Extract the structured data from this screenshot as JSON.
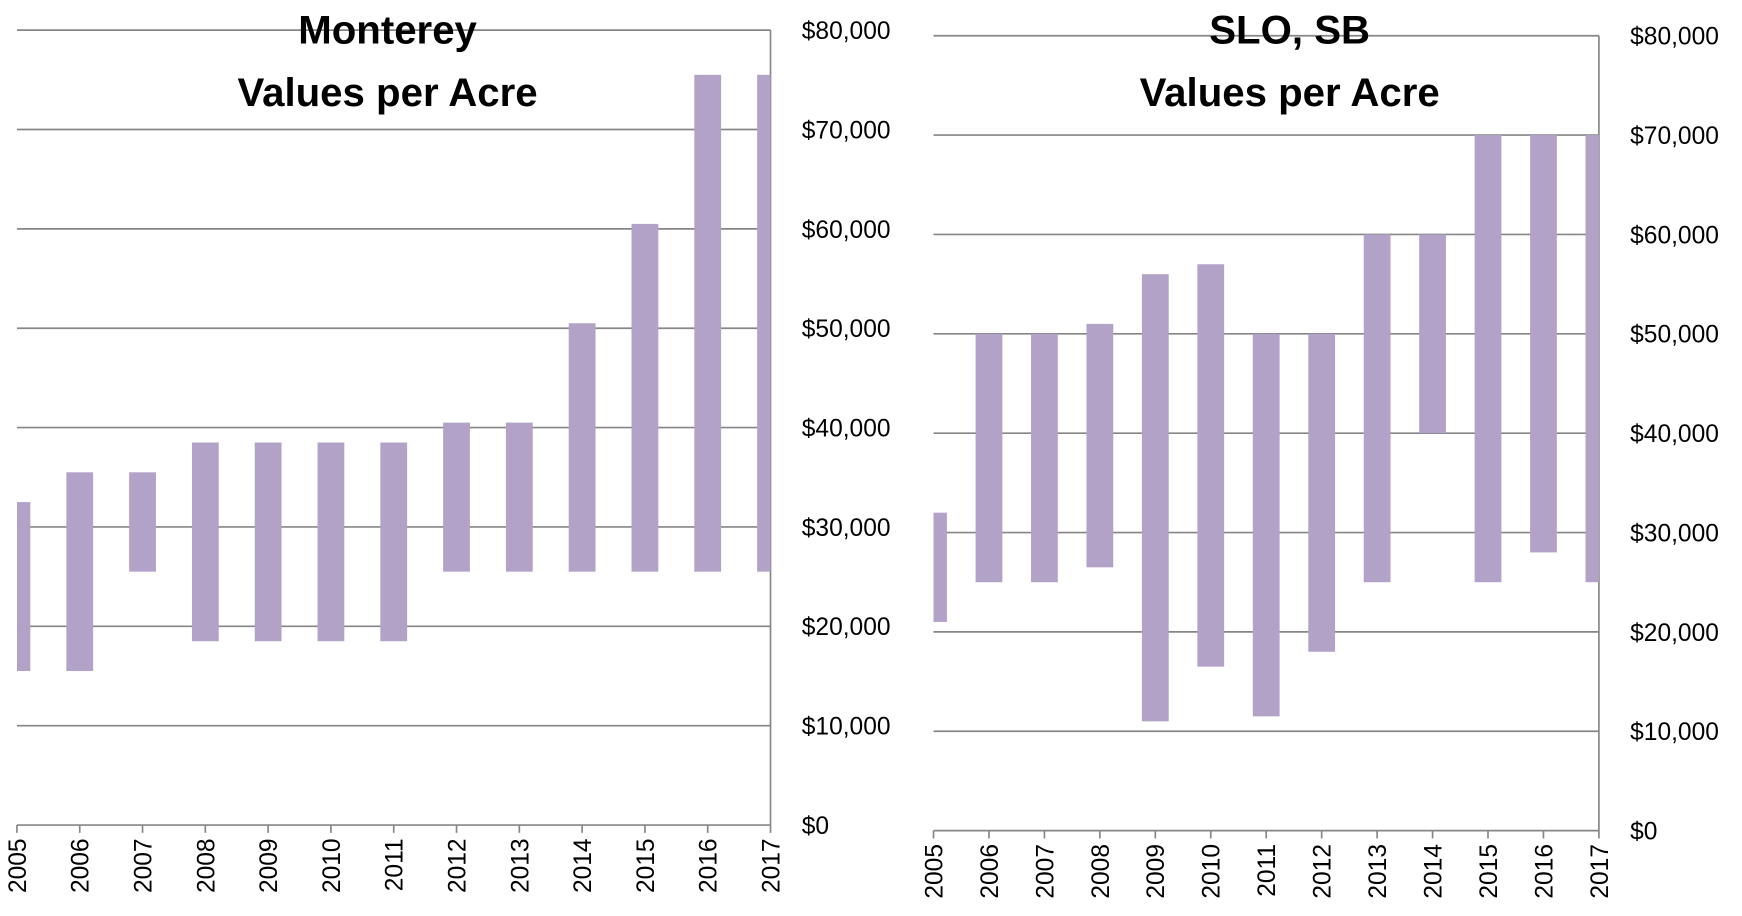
{
  "chart_data": [
    {
      "type": "floating-bar",
      "title": [
        "Monterey",
        "Values per Acre"
      ],
      "color": "#b3a2c7",
      "categories": [
        "2005",
        "2006",
        "2007",
        "2008",
        "2009",
        "2010",
        "2011",
        "2012",
        "2013",
        "2014",
        "2015",
        "2016",
        "2017"
      ],
      "low": [
        15500,
        15500,
        25500,
        18500,
        18500,
        18500,
        18500,
        25500,
        25500,
        25500,
        25500,
        25500,
        25500
      ],
      "high": [
        32500,
        35500,
        35500,
        38500,
        38500,
        38500,
        38500,
        40500,
        40500,
        50500,
        60500,
        75500,
        75500
      ],
      "ylim": [
        0,
        80000
      ],
      "yticks": [
        {
          "value": 0,
          "label": "$0"
        },
        {
          "value": 10000,
          "label": "$10,000"
        },
        {
          "value": 20000,
          "label": "$20,000"
        },
        {
          "value": 30000,
          "label": "$30,000"
        },
        {
          "value": 40000,
          "label": "$40,000"
        },
        {
          "value": 50000,
          "label": "$50,000"
        },
        {
          "value": 60000,
          "label": "$60,000"
        },
        {
          "value": 70000,
          "label": "$70,000"
        },
        {
          "value": 80000,
          "label": "$80,000"
        }
      ],
      "grid": true
    },
    {
      "type": "floating-bar",
      "title": [
        "SLO, SB",
        "Values per Acre"
      ],
      "color": "#b3a2c7",
      "categories": [
        "2005",
        "2006",
        "2007",
        "2008",
        "2009",
        "2010",
        "2011",
        "2012",
        "2013",
        "2014",
        "2015",
        "2016",
        "2017"
      ],
      "low": [
        21000,
        25000,
        25000,
        26500,
        11000,
        16500,
        11500,
        18000,
        25000,
        40000,
        25000,
        28000,
        25000
      ],
      "high": [
        32000,
        50000,
        50000,
        51000,
        56000,
        57000,
        50000,
        50000,
        60000,
        60000,
        70000,
        70000,
        70000
      ],
      "ylim": [
        0,
        80000
      ],
      "yticks": [
        {
          "value": 0,
          "label": "$0"
        },
        {
          "value": 10000,
          "label": "$10,000"
        },
        {
          "value": 20000,
          "label": "$20,000"
        },
        {
          "value": 30000,
          "label": "$30,000"
        },
        {
          "value": 40000,
          "label": "$40,000"
        },
        {
          "value": 50000,
          "label": "$50,000"
        },
        {
          "value": 60000,
          "label": "$60,000"
        },
        {
          "value": 70000,
          "label": "$70,000"
        },
        {
          "value": 80000,
          "label": "$80,000"
        }
      ],
      "grid": true
    }
  ]
}
